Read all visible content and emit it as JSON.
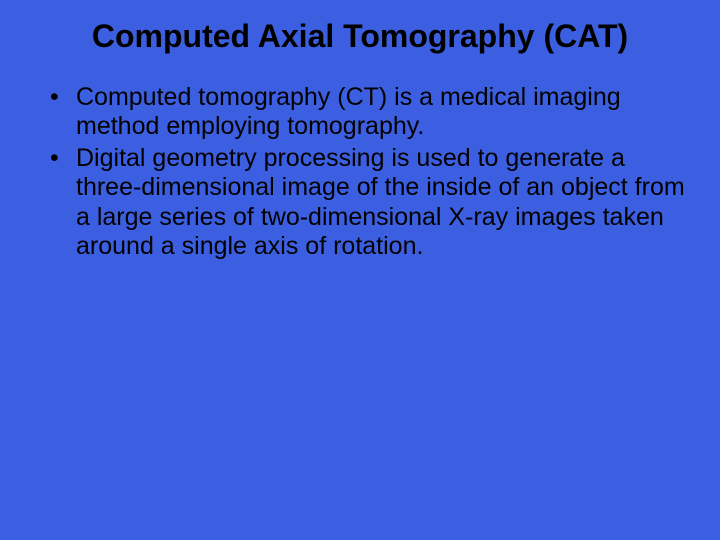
{
  "slide": {
    "background_color": "#3b5fe0",
    "text_color": "#000000",
    "font_family": "Arial",
    "title": {
      "text": "Computed Axial Tomography (CAT)",
      "font_size_pt": 32,
      "font_weight": "bold",
      "align": "center"
    },
    "bullets": {
      "font_size_pt": 25,
      "items": [
        "Computed tomography (CT) is a medical imaging method employing tomography.",
        "Digital geometry processing is used to generate a three-dimensional image of the inside of an object from a large series of two-dimensional X-ray images taken around a single axis of rotation."
      ]
    }
  }
}
